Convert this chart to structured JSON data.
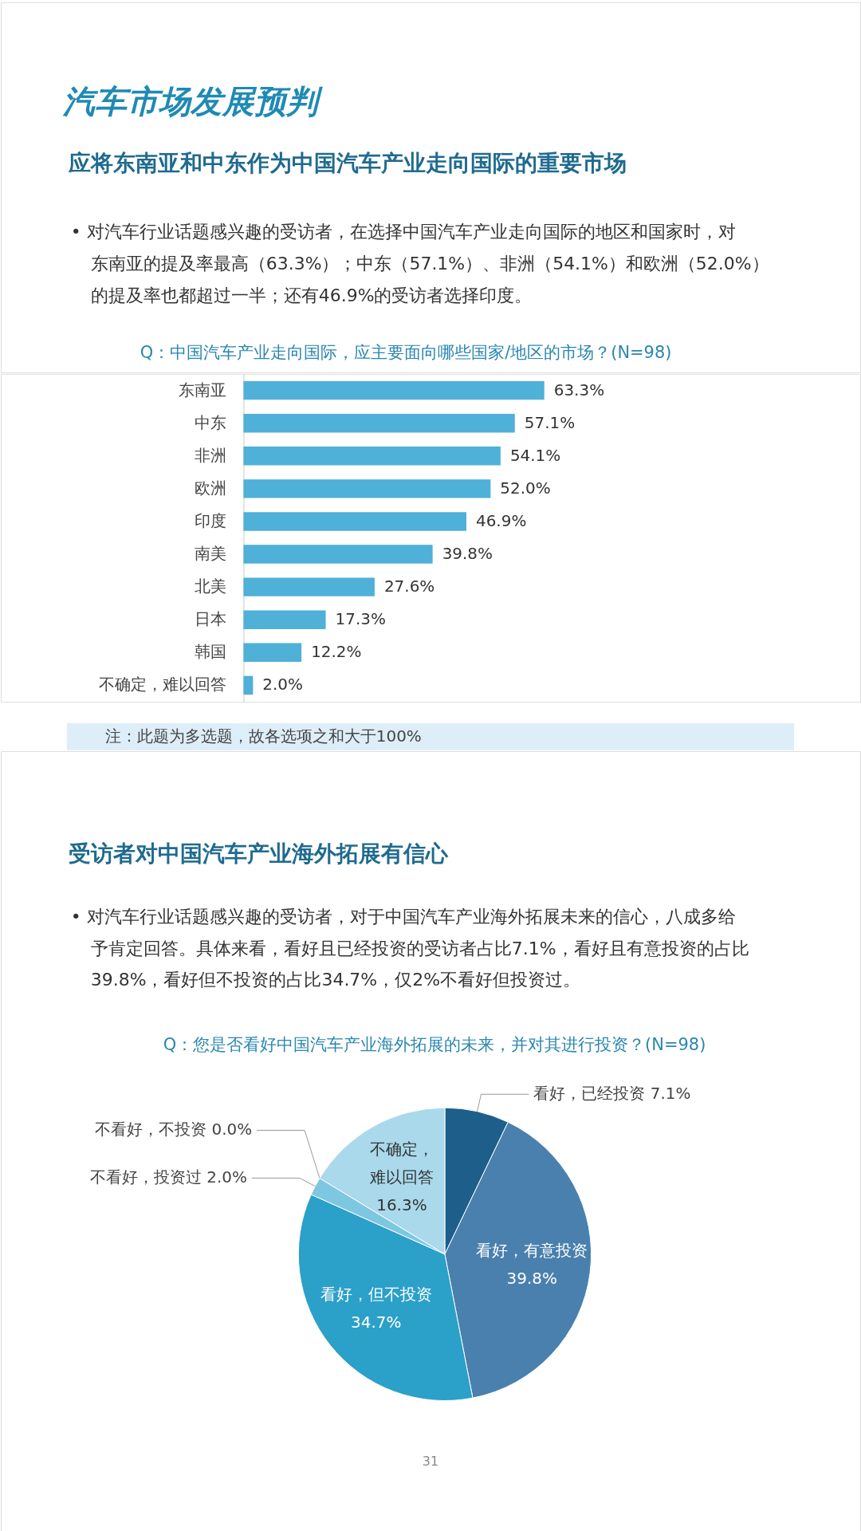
{
  "chart_data": [
    {
      "type": "bar",
      "orientation": "horizontal",
      "title": "Q：中国汽车产业走向国际，应主要面向哪些国家/地区的市场？(N=98)",
      "categories": [
        "东南亚",
        "中东",
        "非洲",
        "欧洲",
        "印度",
        "南美",
        "北美",
        "日本",
        "韩国",
        "不确定，难以回答"
      ],
      "values": [
        63.3,
        57.1,
        54.1,
        52.0,
        46.9,
        39.8,
        27.6,
        17.3,
        12.2,
        2.0
      ],
      "value_labels": [
        "63.3%",
        "57.1%",
        "54.1%",
        "52.0%",
        "46.9%",
        "39.8%",
        "27.6%",
        "17.3%",
        "12.2%",
        "2.0%"
      ],
      "color": "#4fb0d8",
      "annotations": [
        "汽车市场发展预判",
        "应将东南亚和中东作为中国汽车产业走向国际的重要市场",
        "• 对汽车行业话题感兴趣的受访者，在选择中国汽车产业走向国际的地区和国家时，对东南亚的提及率最高（63.3%）；中东（57.1%）、非洲（54.1%）和欧洲（52.0%）的提及率也都超过一半；还有46.9%的受访者选择印度。",
        "注：此题为多选题，故各选项之和大于100%"
      ]
    },
    {
      "type": "pie",
      "title": "Q：您是否看好中国汽车产业海外拓展的未来，并对其进行投资？(N=98)",
      "categories": [
        "看好，已经投资",
        "看好，有意投资",
        "看好，但不投资",
        "不看好，投资过",
        "不看好，不投资",
        "不确定，难以回答"
      ],
      "values": [
        7.1,
        39.8,
        34.7,
        2.0,
        0.0,
        16.3
      ],
      "value_labels": [
        "7.1%",
        "39.8%",
        "34.7%",
        "2.0%",
        "0.0%",
        "16.3%"
      ],
      "colors": [
        "#1d5f8a",
        "#4a80ae",
        "#2ba0c9",
        "#7ec7e0",
        null,
        "#a9d9eb"
      ],
      "annotations": [
        "受访者对中国汽车产业海外拓展有信心",
        "• 对汽车行业话题感兴趣的受访者，对于中国汽车产业海外拓展未来的信心，八成多给予肯定回答。具体来看，看好且已经投资的受访者占比7.1%，看好且有意投资的占比39.8%，看好但不投资的占比34.7%，仅2%不看好但投资过。",
        "31"
      ]
    }
  ]
}
